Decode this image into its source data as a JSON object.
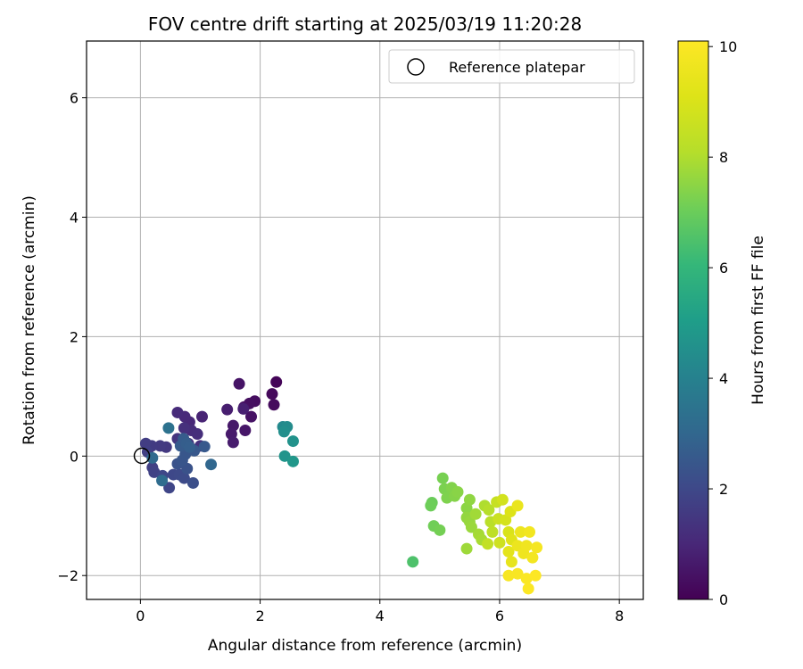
{
  "chart_data": {
    "type": "scatter",
    "title": "FOV centre drift starting at 2025/03/19 11:20:28",
    "xlabel": "Angular distance from reference (arcmin)",
    "ylabel": "Rotation from reference (arcmin)",
    "colorbar_label": "Hours from first FF file",
    "xlim": [
      -0.9,
      8.4
    ],
    "ylim": [
      -2.4,
      6.95
    ],
    "clim": [
      0,
      10.1
    ],
    "xticks": [
      0,
      2,
      4,
      6,
      8
    ],
    "yticks": [
      -2,
      0,
      2,
      4,
      6
    ],
    "cticks": [
      0,
      2,
      4,
      6,
      8,
      10
    ],
    "colormap": "viridis",
    "grid": true,
    "legend": {
      "position": "top-right",
      "label": "Reference platepar"
    },
    "reference": {
      "x": 0,
      "y": 0
    },
    "points": [
      {
        "x": 2.27,
        "y": 1.24,
        "t": 0.1
      },
      {
        "x": 2.2,
        "y": 1.04,
        "t": 0.2
      },
      {
        "x": 2.23,
        "y": 0.86,
        "t": 0.25
      },
      {
        "x": 1.91,
        "y": 0.92,
        "t": 0.3
      },
      {
        "x": 1.82,
        "y": 0.88,
        "t": 0.35
      },
      {
        "x": 1.73,
        "y": 0.82,
        "t": 0.4
      },
      {
        "x": 1.85,
        "y": 0.66,
        "t": 0.45
      },
      {
        "x": 1.65,
        "y": 1.21,
        "t": 0.5
      },
      {
        "x": 1.75,
        "y": 0.43,
        "t": 0.55
      },
      {
        "x": 1.55,
        "y": 0.51,
        "t": 0.6
      },
      {
        "x": 1.52,
        "y": 0.37,
        "t": 0.65
      },
      {
        "x": 1.55,
        "y": 0.23,
        "t": 0.7
      },
      {
        "x": 1.45,
        "y": 0.78,
        "t": 0.75
      },
      {
        "x": 1.72,
        "y": 0.79,
        "t": 0.8
      },
      {
        "x": 1.03,
        "y": 0.66,
        "t": 0.9
      },
      {
        "x": 0.82,
        "y": 0.57,
        "t": 1.0
      },
      {
        "x": 0.74,
        "y": 0.66,
        "t": 1.05
      },
      {
        "x": 0.62,
        "y": 0.73,
        "t": 1.1
      },
      {
        "x": 0.85,
        "y": 0.43,
        "t": 1.15
      },
      {
        "x": 0.95,
        "y": 0.37,
        "t": 1.2
      },
      {
        "x": 0.73,
        "y": 0.47,
        "t": 1.25
      },
      {
        "x": 1.0,
        "y": 0.17,
        "t": 1.3
      },
      {
        "x": 0.8,
        "y": 0.21,
        "t": 1.35
      },
      {
        "x": 0.88,
        "y": 0.11,
        "t": 1.4
      },
      {
        "x": 0.62,
        "y": 0.29,
        "t": 1.45
      },
      {
        "x": 0.43,
        "y": 0.15,
        "t": 1.5
      },
      {
        "x": 0.33,
        "y": 0.17,
        "t": 1.55
      },
      {
        "x": 0.19,
        "y": 0.17,
        "t": 1.6
      },
      {
        "x": 0.09,
        "y": 0.21,
        "t": 1.65
      },
      {
        "x": 0.12,
        "y": 0.07,
        "t": 1.7
      },
      {
        "x": 0.2,
        "y": -0.19,
        "t": 1.75
      },
      {
        "x": 0.23,
        "y": -0.27,
        "t": 1.8
      },
      {
        "x": 0.48,
        "y": -0.53,
        "t": 1.9
      },
      {
        "x": 0.37,
        "y": -0.33,
        "t": 1.95
      },
      {
        "x": 0.55,
        "y": -0.31,
        "t": 2.0
      },
      {
        "x": 0.65,
        "y": -0.31,
        "t": 2.05
      },
      {
        "x": 0.73,
        "y": -0.37,
        "t": 2.1
      },
      {
        "x": 0.88,
        "y": -0.45,
        "t": 2.2
      },
      {
        "x": 0.78,
        "y": -0.21,
        "t": 2.3
      },
      {
        "x": 0.62,
        "y": -0.13,
        "t": 2.35
      },
      {
        "x": 0.7,
        "y": -0.07,
        "t": 2.4
      },
      {
        "x": 0.75,
        "y": 0.03,
        "t": 2.45
      },
      {
        "x": 0.9,
        "y": 0.09,
        "t": 2.5
      },
      {
        "x": 1.07,
        "y": 0.16,
        "t": 2.55
      },
      {
        "x": 0.67,
        "y": 0.17,
        "t": 2.6
      },
      {
        "x": 0.72,
        "y": 0.29,
        "t": 2.65
      },
      {
        "x": 0.77,
        "y": 0.21,
        "t": 2.7
      },
      {
        "x": 0.82,
        "y": 0.15,
        "t": 2.75
      },
      {
        "x": 1.18,
        "y": -0.14,
        "t": 3.0
      },
      {
        "x": 0.2,
        "y": -0.03,
        "t": 3.1
      },
      {
        "x": 0.36,
        "y": -0.41,
        "t": 3.2
      },
      {
        "x": 0.47,
        "y": 0.47,
        "t": 3.4
      },
      {
        "x": 2.38,
        "y": 0.49,
        "t": 4.3
      },
      {
        "x": 2.45,
        "y": 0.49,
        "t": 4.4
      },
      {
        "x": 2.4,
        "y": 0.41,
        "t": 4.5
      },
      {
        "x": 2.55,
        "y": 0.25,
        "t": 4.6
      },
      {
        "x": 2.41,
        "y": 0.0,
        "t": 4.7
      },
      {
        "x": 2.55,
        "y": -0.09,
        "t": 4.8
      },
      {
        "x": 4.55,
        "y": -1.77,
        "t": 6.5
      },
      {
        "x": 4.87,
        "y": -0.78,
        "t": 7.0
      },
      {
        "x": 4.85,
        "y": -0.83,
        "t": 7.05
      },
      {
        "x": 4.9,
        "y": -1.17,
        "t": 7.1
      },
      {
        "x": 5.0,
        "y": -1.24,
        "t": 7.15
      },
      {
        "x": 5.05,
        "y": -0.37,
        "t": 7.2
      },
      {
        "x": 5.08,
        "y": -0.55,
        "t": 7.25
      },
      {
        "x": 5.12,
        "y": -0.7,
        "t": 7.3
      },
      {
        "x": 5.2,
        "y": -0.53,
        "t": 7.35
      },
      {
        "x": 5.25,
        "y": -0.67,
        "t": 7.4
      },
      {
        "x": 5.3,
        "y": -0.6,
        "t": 7.45
      },
      {
        "x": 5.45,
        "y": -0.87,
        "t": 7.5
      },
      {
        "x": 5.5,
        "y": -0.73,
        "t": 7.55
      },
      {
        "x": 5.45,
        "y": -1.03,
        "t": 7.6
      },
      {
        "x": 5.5,
        "y": -1.1,
        "t": 7.65
      },
      {
        "x": 5.53,
        "y": -1.19,
        "t": 7.7
      },
      {
        "x": 5.45,
        "y": -1.55,
        "t": 7.75
      },
      {
        "x": 5.6,
        "y": -0.97,
        "t": 7.8
      },
      {
        "x": 5.65,
        "y": -1.31,
        "t": 7.85
      },
      {
        "x": 5.7,
        "y": -1.4,
        "t": 7.9
      },
      {
        "x": 5.75,
        "y": -0.83,
        "t": 8.0
      },
      {
        "x": 5.82,
        "y": -0.9,
        "t": 8.1
      },
      {
        "x": 5.85,
        "y": -1.1,
        "t": 8.2
      },
      {
        "x": 5.88,
        "y": -1.27,
        "t": 8.3
      },
      {
        "x": 5.8,
        "y": -1.47,
        "t": 8.4
      },
      {
        "x": 5.95,
        "y": -0.77,
        "t": 8.5
      },
      {
        "x": 5.98,
        "y": -1.05,
        "t": 8.6
      },
      {
        "x": 6.0,
        "y": -1.45,
        "t": 8.7
      },
      {
        "x": 6.05,
        "y": -0.73,
        "t": 8.8
      },
      {
        "x": 6.1,
        "y": -1.07,
        "t": 8.9
      },
      {
        "x": 6.15,
        "y": -1.27,
        "t": 9.0
      },
      {
        "x": 6.18,
        "y": -0.93,
        "t": 9.1
      },
      {
        "x": 6.2,
        "y": -1.4,
        "t": 9.2
      },
      {
        "x": 6.15,
        "y": -1.6,
        "t": 9.3
      },
      {
        "x": 6.2,
        "y": -1.77,
        "t": 9.4
      },
      {
        "x": 6.3,
        "y": -0.83,
        "t": 9.5
      },
      {
        "x": 6.3,
        "y": -1.5,
        "t": 9.55
      },
      {
        "x": 6.35,
        "y": -1.27,
        "t": 9.6
      },
      {
        "x": 6.4,
        "y": -1.63,
        "t": 9.65
      },
      {
        "x": 6.45,
        "y": -1.5,
        "t": 9.7
      },
      {
        "x": 6.5,
        "y": -1.27,
        "t": 9.75
      },
      {
        "x": 6.55,
        "y": -1.7,
        "t": 9.8
      },
      {
        "x": 6.62,
        "y": -1.53,
        "t": 9.85
      },
      {
        "x": 6.15,
        "y": -2.0,
        "t": 9.9
      },
      {
        "x": 6.3,
        "y": -1.97,
        "t": 9.95
      },
      {
        "x": 6.45,
        "y": -2.05,
        "t": 10.0
      },
      {
        "x": 6.48,
        "y": -2.22,
        "t": 10.05
      },
      {
        "x": 6.6,
        "y": -2.0,
        "t": 10.1
      }
    ]
  }
}
